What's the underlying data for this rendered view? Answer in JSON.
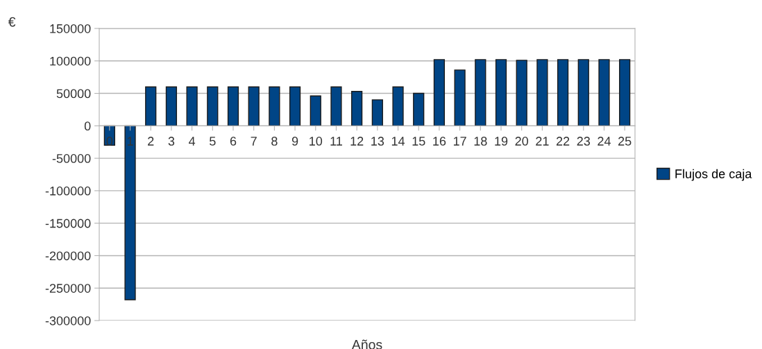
{
  "chart_data": {
    "type": "bar",
    "xlabel": "Años",
    "ylabel": "€",
    "categories": [
      "0",
      "1",
      "2",
      "3",
      "4",
      "5",
      "6",
      "7",
      "8",
      "9",
      "10",
      "11",
      "12",
      "13",
      "14",
      "15",
      "16",
      "17",
      "18",
      "19",
      "20",
      "21",
      "22",
      "23",
      "24",
      "25"
    ],
    "series": [
      {
        "name": "Flujos de caja",
        "color": "#004586",
        "values": [
          -30000,
          -268000,
          60000,
          60000,
          60000,
          60000,
          60000,
          60000,
          60000,
          60000,
          46000,
          60000,
          53000,
          40000,
          60000,
          50000,
          102000,
          86000,
          102000,
          102000,
          101000,
          102000,
          102000,
          102000,
          102000,
          102000
        ]
      }
    ],
    "ylim": [
      -300000,
      150000
    ],
    "yticks": [
      -300000,
      -250000,
      -200000,
      -150000,
      -100000,
      -50000,
      0,
      50000,
      100000,
      150000
    ],
    "grid": "y",
    "legend": "right"
  }
}
